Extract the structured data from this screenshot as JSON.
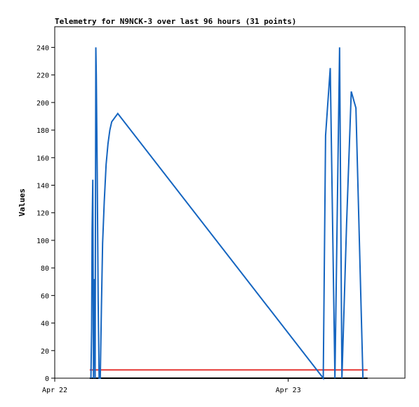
{
  "chart_data": {
    "type": "line",
    "title": "Telemetry for N9NCK-3 over last 96 hours (31 points)",
    "xlabel": "",
    "ylabel": "Values",
    "ylim": [
      0,
      255
    ],
    "yticks": [
      0,
      20,
      40,
      60,
      80,
      100,
      120,
      140,
      160,
      180,
      200,
      220,
      240
    ],
    "xlim": [
      0,
      1.5
    ],
    "xticks": [
      {
        "label": "Apr 22",
        "x": 0
      },
      {
        "label": "Apr 23",
        "x": 1
      }
    ],
    "grid": false,
    "series": [
      {
        "color": "#1565c0",
        "x": [
          0.155,
          0.158,
          0.16,
          0.163,
          0.166,
          0.17,
          0.173,
          0.176,
          0.178,
          0.182,
          0.186,
          0.19,
          0.195,
          0.2,
          0.205,
          0.212,
          0.22,
          0.228,
          0.236,
          0.244,
          0.27,
          1.15,
          1.16,
          1.18,
          1.2,
          1.22,
          1.23,
          1.25,
          1.27,
          1.29,
          1.32
        ],
        "y": [
          0,
          36,
          108,
          144,
          0,
          72,
          0,
          240,
          220,
          148,
          56,
          0,
          0,
          52,
          98,
          128,
          155,
          170,
          180,
          186,
          192,
          0,
          176,
          225,
          0,
          240,
          0,
          112,
          208,
          196,
          0
        ]
      },
      {
        "color": "#e53935",
        "x": [
          0.15,
          1.34
        ],
        "y": [
          6,
          6
        ]
      },
      {
        "color": "#000000",
        "x": [
          0.15,
          1.34
        ],
        "y": [
          0,
          0
        ]
      }
    ]
  }
}
